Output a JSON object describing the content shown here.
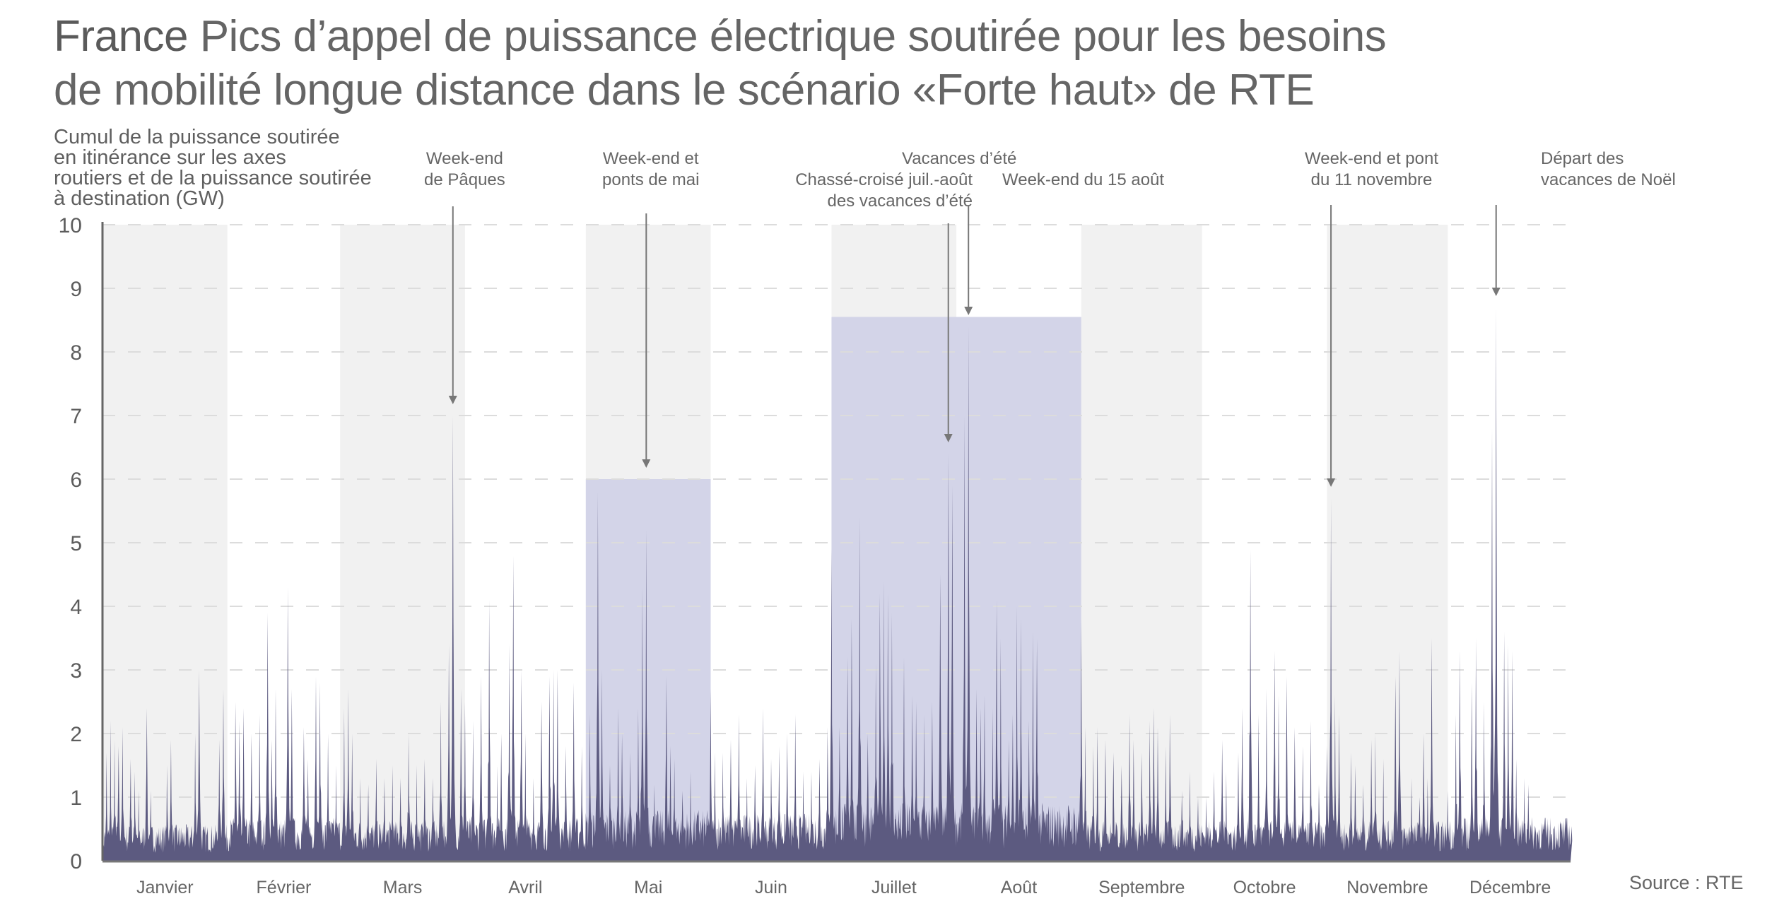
{
  "title": {
    "bold": "France",
    "line1": "Pics d’appel de puissance électrique soutirée pour les besoins",
    "line2": "de mobilité longue distance dans le scénario «Forte haut» de RTE"
  },
  "source": "Source : RTE",
  "colors": {
    "area": "#5c5a80",
    "highlight": "#d3d4e8",
    "band": "#f1f1f1",
    "grid": "#dcdcdc",
    "axis": "#666666",
    "arrow": "#777777"
  },
  "chart_data": {
    "type": "area",
    "title": "France Pics d’appel de puissance électrique soutirée pour les besoins de mobilité longue distance dans le scénario «Forte haut» de RTE",
    "ylabel": "Cumul de la puissance soutirée en itinérance sur les axes routiers et de la puissance soutirée à destination (GW)",
    "ylabel_lines": [
      "Cumul de la puissance soutirée",
      "en itinérance sur les axes",
      "routiers et de la puissance soutirée",
      "à destination (GW)"
    ],
    "xlabel": "",
    "ylim": [
      0,
      10
    ],
    "yticks": [
      0,
      1,
      2,
      3,
      4,
      5,
      6,
      7,
      8,
      9,
      10
    ],
    "grid": true,
    "x_unit": "day of year",
    "days": 365,
    "months": [
      "Janvier",
      "Février",
      "Mars",
      "Avril",
      "Mai",
      "Juin",
      "Juillet",
      "Août",
      "Septembre",
      "Octobre",
      "Novembre",
      "Décembre"
    ],
    "month_days": [
      31,
      28,
      31,
      30,
      31,
      30,
      31,
      31,
      30,
      31,
      30,
      31
    ],
    "shaded_months": [
      0,
      2,
      4,
      6,
      8,
      10
    ],
    "highlights": [
      {
        "name": "Mai",
        "start_day": 120,
        "end_day": 151,
        "level": 6.0
      },
      {
        "name": "Vacances d’été",
        "start_day": 181,
        "end_day": 243,
        "level": 8.55
      }
    ],
    "baseline_by_month": [
      0.5,
      0.6,
      0.55,
      0.6,
      0.7,
      0.65,
      0.8,
      0.8,
      0.55,
      0.55,
      0.55,
      0.6
    ],
    "peaks": [
      [
        1,
        1.7
      ],
      [
        2,
        2.2
      ],
      [
        3,
        1.9
      ],
      [
        4,
        1.8
      ],
      [
        5,
        2.1
      ],
      [
        7,
        1.6
      ],
      [
        8,
        1.4
      ],
      [
        9,
        1.1
      ],
      [
        11,
        2.4
      ],
      [
        12,
        1.1
      ],
      [
        16,
        1.5
      ],
      [
        17,
        1.9
      ],
      [
        23,
        2.0
      ],
      [
        24,
        3.0
      ],
      [
        29,
        1.9
      ],
      [
        30,
        2.7
      ],
      [
        33,
        2.5
      ],
      [
        34,
        2.2
      ],
      [
        35,
        2.4
      ],
      [
        37,
        2.0
      ],
      [
        39,
        2.3
      ],
      [
        41,
        3.9
      ],
      [
        42,
        1.9
      ],
      [
        43,
        2.7
      ],
      [
        46,
        4.3
      ],
      [
        47,
        2.7
      ],
      [
        50,
        2.1
      ],
      [
        51,
        1.6
      ],
      [
        53,
        2.9
      ],
      [
        54,
        2.8
      ],
      [
        56,
        2.0
      ],
      [
        58,
        1.5
      ],
      [
        60,
        2.4
      ],
      [
        61,
        2.7
      ],
      [
        62,
        2.0
      ],
      [
        64,
        1.3
      ],
      [
        66,
        1.2
      ],
      [
        68,
        1.6
      ],
      [
        70,
        1.3
      ],
      [
        72,
        1.5
      ],
      [
        74,
        1.3
      ],
      [
        76,
        2.0
      ],
      [
        78,
        1.5
      ],
      [
        80,
        1.6
      ],
      [
        82,
        1.3
      ],
      [
        84,
        2.5
      ],
      [
        86,
        3.4
      ],
      [
        87,
        7.0
      ],
      [
        89,
        2.7
      ],
      [
        90,
        2.5
      ],
      [
        92,
        2.2
      ],
      [
        94,
        2.9
      ],
      [
        96,
        4.1
      ],
      [
        98,
        1.5
      ],
      [
        99,
        2.0
      ],
      [
        101,
        3.4
      ],
      [
        102,
        4.8
      ],
      [
        104,
        3.0
      ],
      [
        105,
        2.0
      ],
      [
        107,
        1.3
      ],
      [
        109,
        2.5
      ],
      [
        111,
        2.9
      ],
      [
        112,
        3.0
      ],
      [
        113,
        3.0
      ],
      [
        115,
        1.8
      ],
      [
        117,
        2.8
      ],
      [
        119,
        1.8
      ],
      [
        121,
        2.3
      ],
      [
        123,
        5.8
      ],
      [
        124,
        3.0
      ],
      [
        126,
        1.5
      ],
      [
        128,
        2.4
      ],
      [
        129,
        2.0
      ],
      [
        131,
        1.7
      ],
      [
        133,
        2.4
      ],
      [
        134,
        4.3
      ],
      [
        135,
        5.2
      ],
      [
        137,
        1.2
      ],
      [
        140,
        2.9
      ],
      [
        141,
        1.8
      ],
      [
        142,
        1.6
      ],
      [
        144,
        1.1
      ],
      [
        146,
        1.4
      ],
      [
        148,
        0.8
      ],
      [
        151,
        2.7
      ],
      [
        152,
        1.7
      ],
      [
        154,
        1.7
      ],
      [
        156,
        1.9
      ],
      [
        158,
        2.3
      ],
      [
        160,
        1.3
      ],
      [
        162,
        1.5
      ],
      [
        164,
        2.4
      ],
      [
        166,
        1.6
      ],
      [
        168,
        1.8
      ],
      [
        170,
        2.0
      ],
      [
        172,
        2.3
      ],
      [
        174,
        1.4
      ],
      [
        176,
        1.4
      ],
      [
        178,
        1.6
      ],
      [
        180,
        2.1
      ],
      [
        181,
        4.9
      ],
      [
        183,
        2.1
      ],
      [
        185,
        3.2
      ],
      [
        186,
        3.8
      ],
      [
        188,
        5.4
      ],
      [
        190,
        2.0
      ],
      [
        192,
        3.1
      ],
      [
        193,
        4.2
      ],
      [
        194,
        4.4
      ],
      [
        195,
        4.2
      ],
      [
        196,
        3.9
      ],
      [
        199,
        3.2
      ],
      [
        201,
        2.6
      ],
      [
        202,
        2.5
      ],
      [
        204,
        2.3
      ],
      [
        206,
        2.5
      ],
      [
        208,
        4.5
      ],
      [
        210,
        6.4
      ],
      [
        211,
        5.9
      ],
      [
        214,
        7.0
      ],
      [
        215,
        8.4
      ],
      [
        217,
        2.7
      ],
      [
        218,
        2.4
      ],
      [
        219,
        2.6
      ],
      [
        221,
        2.4
      ],
      [
        222,
        4.1
      ],
      [
        223,
        3.5
      ],
      [
        225,
        1.9
      ],
      [
        226,
        2.3
      ],
      [
        227,
        4.0
      ],
      [
        228,
        3.8
      ],
      [
        230,
        2.2
      ],
      [
        231,
        3.6
      ],
      [
        232,
        3.5
      ],
      [
        243,
        3.8
      ],
      [
        244,
        2.1
      ],
      [
        246,
        1.8
      ],
      [
        247,
        2.1
      ],
      [
        249,
        1.9
      ],
      [
        251,
        1.7
      ],
      [
        253,
        1.5
      ],
      [
        255,
        2.3
      ],
      [
        256,
        1.9
      ],
      [
        258,
        1.7
      ],
      [
        260,
        2.2
      ],
      [
        261,
        2.4
      ],
      [
        262,
        2.1
      ],
      [
        264,
        1.8
      ],
      [
        265,
        2.3
      ],
      [
        268,
        1.1
      ],
      [
        270,
        1.4
      ],
      [
        272,
        1.0
      ],
      [
        274,
        1.0
      ],
      [
        276,
        1.4
      ],
      [
        278,
        1.9
      ],
      [
        279,
        1.4
      ],
      [
        282,
        1.7
      ],
      [
        283,
        2.4
      ],
      [
        285,
        4.9
      ],
      [
        287,
        2.3
      ],
      [
        289,
        2.7
      ],
      [
        291,
        3.3
      ],
      [
        292,
        2.6
      ],
      [
        294,
        2.9
      ],
      [
        296,
        2.1
      ],
      [
        298,
        1.8
      ],
      [
        300,
        2.2
      ],
      [
        302,
        1.2
      ],
      [
        304,
        1.8
      ],
      [
        305,
        5.7
      ],
      [
        306,
        2.6
      ],
      [
        307,
        2.3
      ],
      [
        310,
        1.7
      ],
      [
        311,
        1.5
      ],
      [
        313,
        1.2
      ],
      [
        315,
        1.9
      ],
      [
        316,
        2.0
      ],
      [
        318,
        1.6
      ],
      [
        321,
        2.9
      ],
      [
        322,
        3.3
      ],
      [
        325,
        1.3
      ],
      [
        327,
        1.0
      ],
      [
        328,
        2.0
      ],
      [
        329,
        1.3
      ],
      [
        330,
        3.5
      ],
      [
        334,
        1.1
      ],
      [
        336,
        2.3
      ],
      [
        337,
        3.3
      ],
      [
        340,
        2.8
      ],
      [
        341,
        3.5
      ],
      [
        343,
        2.5
      ],
      [
        345,
        6.8
      ],
      [
        346,
        8.7
      ],
      [
        348,
        3.6
      ],
      [
        349,
        3.4
      ],
      [
        350,
        3.3
      ],
      [
        351,
        1.6
      ],
      [
        353,
        1.3
      ],
      [
        354,
        1.2
      ]
    ],
    "annotations": [
      {
        "lines": [
          "Week-end",
          "de Pâques"
        ],
        "day": 87,
        "value": 7.0
      },
      {
        "lines": [
          "Week-end et",
          "ponts de mai"
        ],
        "day": 135,
        "value": 6.0
      },
      {
        "lines": [
          "Vacances d’été"
        ],
        "day": null,
        "value": null
      },
      {
        "lines": [
          "Chassé-croisé juil.-août",
          "des vacances d’été"
        ],
        "day": 210,
        "value": 6.4
      },
      {
        "lines": [
          "Week-end du 15 août"
        ],
        "day": 215,
        "value": 8.4
      },
      {
        "lines": [
          "Week-end et pont",
          "du 11 novembre"
        ],
        "day": 305,
        "value": 5.7
      },
      {
        "lines": [
          "Départ des",
          "vacances de Noël"
        ],
        "day": 346,
        "value": 8.7
      }
    ]
  }
}
